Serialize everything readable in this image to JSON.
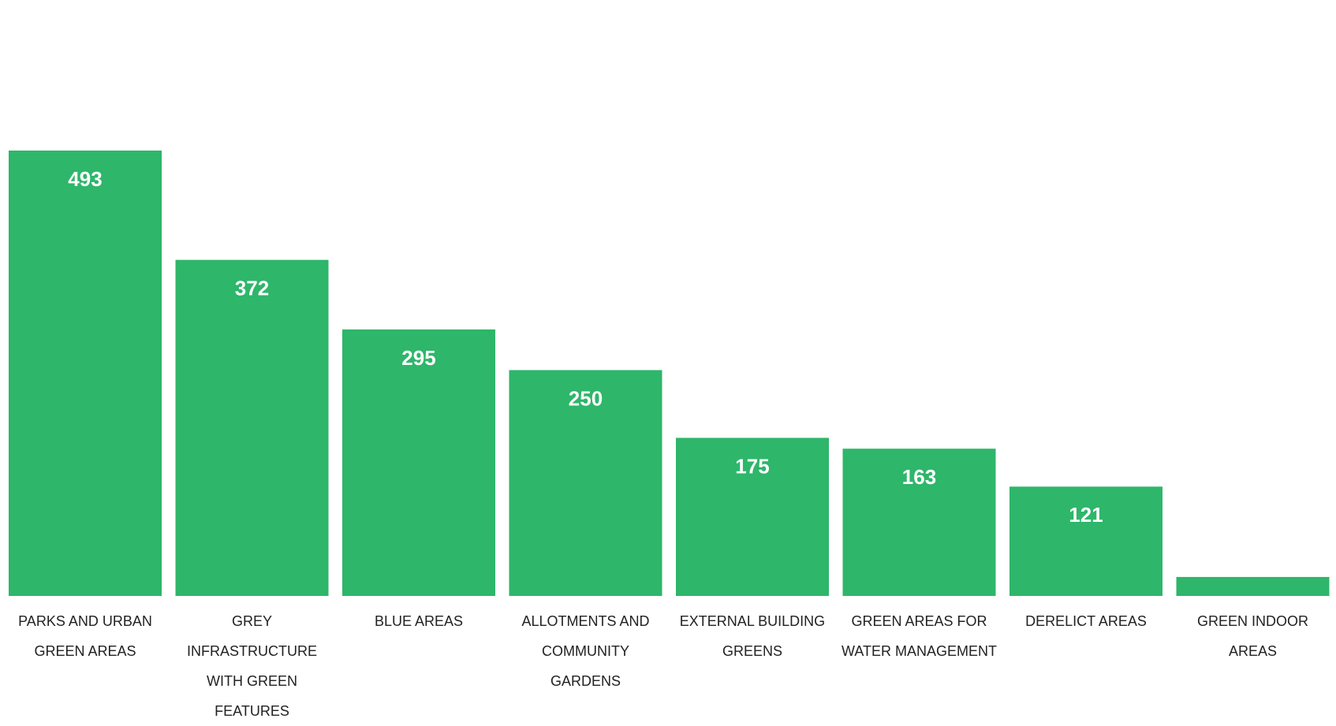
{
  "chart_data": {
    "type": "bar",
    "categories": [
      "PARKS AND URBAN GREEN AREAS",
      "GREY INFRASTRUCTURE WITH GREEN FEATURES",
      "BLUE AREAS",
      "ALLOTMENTS AND COMMUNITY GARDENS",
      "EXTERNAL BUILDING GREENS",
      "GREEN AREAS FOR WATER MANAGEMENT",
      "DERELICT AREAS",
      "GREEN INDOOR AREAS"
    ],
    "values": [
      493,
      372,
      295,
      250,
      175,
      163,
      121,
      21
    ],
    "color": "#2eb66a"
  }
}
